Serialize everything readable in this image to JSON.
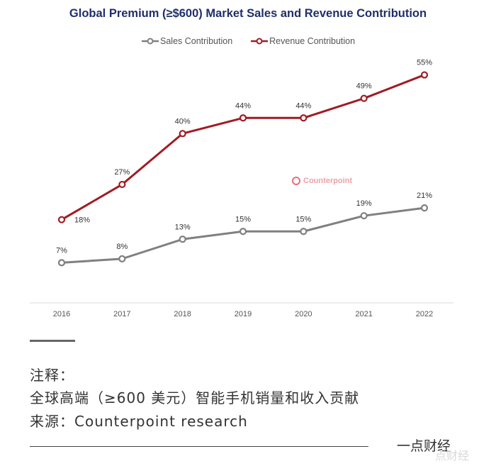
{
  "chart_data": {
    "type": "line",
    "title": "Global Premium (≥$600) Market Sales and Revenue Contribution",
    "categories": [
      "2016",
      "2017",
      "2018",
      "2019",
      "2020",
      "2021",
      "2022"
    ],
    "series": [
      {
        "name": "Sales Contribution",
        "color": "#808080",
        "values": [
          7,
          8,
          13,
          15,
          15,
          19,
          21
        ],
        "labels": [
          "7%",
          "8%",
          "13%",
          "15%",
          "15%",
          "19%",
          "21%"
        ]
      },
      {
        "name": "Revenue Contribution",
        "color": "#a01c24",
        "values": [
          18,
          27,
          40,
          44,
          44,
          49,
          55
        ],
        "labels": [
          "18%",
          "27%",
          "40%",
          "44%",
          "44%",
          "49%",
          "55%"
        ]
      }
    ],
    "y_unit": "%",
    "ylim": [
      0,
      60
    ],
    "grid": false,
    "legend_position": "top"
  },
  "watermark": {
    "text": "Counterpoint"
  },
  "notes": {
    "title": "注释：",
    "text": "全球高端（≥600 美元）智能手机销量和收入贡献",
    "source": "来源：Counterpoint research"
  },
  "brand": {
    "name": "一点财经",
    "ghost": "点财经"
  }
}
